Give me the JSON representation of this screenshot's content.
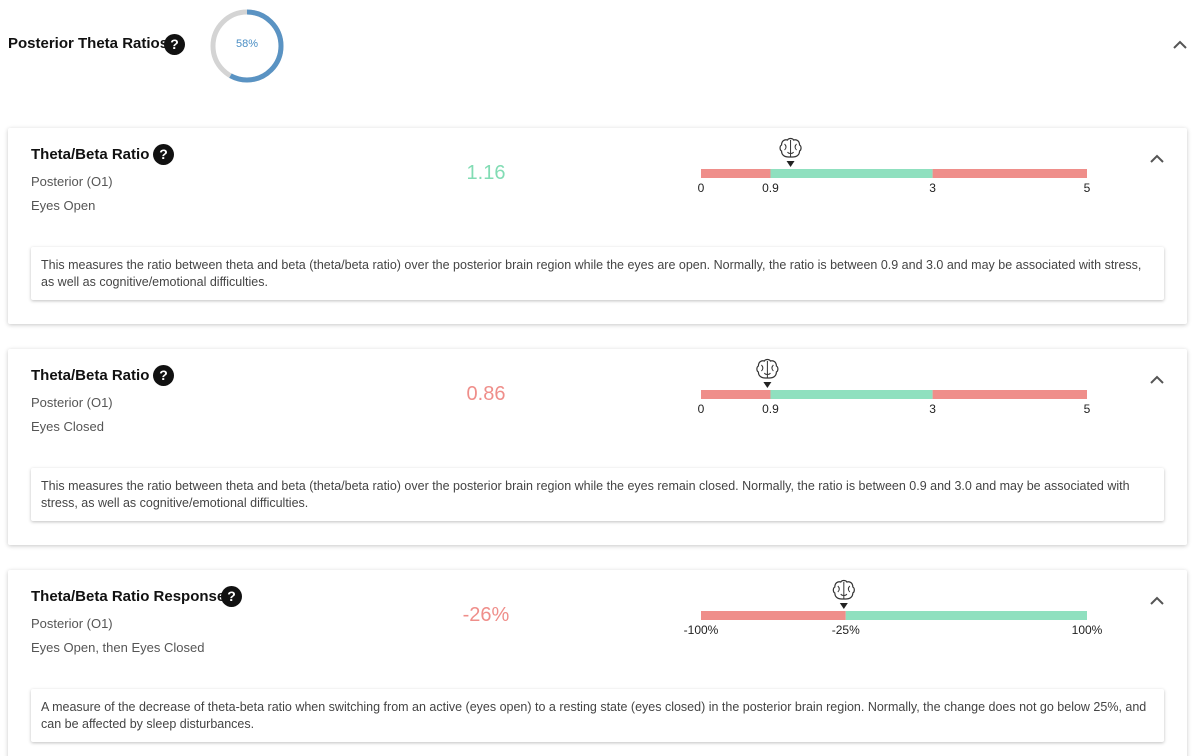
{
  "section": {
    "title": "Posterior Theta Ratios",
    "progress_percent": 58,
    "progress_label": "58%",
    "help_icon": "question-circle-icon",
    "collapse_icon": "chevron-up-icon"
  },
  "colors": {
    "normal": "#8fe0bf",
    "abnormal": "#ef8e8a",
    "value_normal": "#82dcb4",
    "value_abnormal": "#ef8e8a",
    "progress": "#5a93c3",
    "progress_track": "#d4d4d4"
  },
  "cards": [
    {
      "title": "Theta/Beta Ratio",
      "region": "Posterior (O1)",
      "condition": "Eyes Open",
      "value": "1.16",
      "status": "normal",
      "scale": {
        "min": 0,
        "max": 5,
        "segments": [
          {
            "from": 0,
            "to": 0.9,
            "status": "abnormal"
          },
          {
            "from": 0.9,
            "to": 3,
            "status": "normal"
          },
          {
            "from": 3,
            "to": 5,
            "status": "abnormal"
          }
        ],
        "ticks": [
          {
            "value": 0,
            "label": "0"
          },
          {
            "value": 0.9,
            "label": "0.9"
          },
          {
            "value": 3,
            "label": "3"
          },
          {
            "value": 5,
            "label": "5"
          }
        ],
        "marker": 1.16
      },
      "description": "This measures the ratio between theta and beta (theta/beta ratio) over the posterior brain region while the eyes are open. Normally, the ratio is between 0.9 and 3.0 and may be associated with stress, as well as cognitive/emotional difficulties."
    },
    {
      "title": "Theta/Beta Ratio",
      "region": "Posterior (O1)",
      "condition": "Eyes Closed",
      "value": "0.86",
      "status": "abnormal",
      "scale": {
        "min": 0,
        "max": 5,
        "segments": [
          {
            "from": 0,
            "to": 0.9,
            "status": "abnormal"
          },
          {
            "from": 0.9,
            "to": 3,
            "status": "normal"
          },
          {
            "from": 3,
            "to": 5,
            "status": "abnormal"
          }
        ],
        "ticks": [
          {
            "value": 0,
            "label": "0"
          },
          {
            "value": 0.9,
            "label": "0.9"
          },
          {
            "value": 3,
            "label": "3"
          },
          {
            "value": 5,
            "label": "5"
          }
        ],
        "marker": 0.86
      },
      "description": "This measures the ratio between theta and beta (theta/beta ratio) over the posterior brain region while the eyes remain closed. Normally, the ratio is between 0.9 and 3.0 and may be associated with stress, as well as cognitive/emotional difficulties."
    },
    {
      "title": "Theta/Beta Ratio Response",
      "region": "Posterior (O1)",
      "condition": "Eyes Open, then Eyes Closed",
      "value": "-26%",
      "status": "abnormal",
      "scale": {
        "min": -100,
        "max": 100,
        "segments": [
          {
            "from": -100,
            "to": -25,
            "status": "abnormal"
          },
          {
            "from": -25,
            "to": 100,
            "status": "normal"
          }
        ],
        "ticks": [
          {
            "value": -100,
            "label": "-100%"
          },
          {
            "value": -25,
            "label": "-25%"
          },
          {
            "value": 100,
            "label": "100%"
          }
        ],
        "marker": -26
      },
      "description": "A measure of the decrease of theta-beta ratio when switching from an active (eyes open) to a resting state (eyes closed) in the posterior brain region. Normally, the change does not go below 25%, and can be affected by sleep disturbances."
    }
  ]
}
